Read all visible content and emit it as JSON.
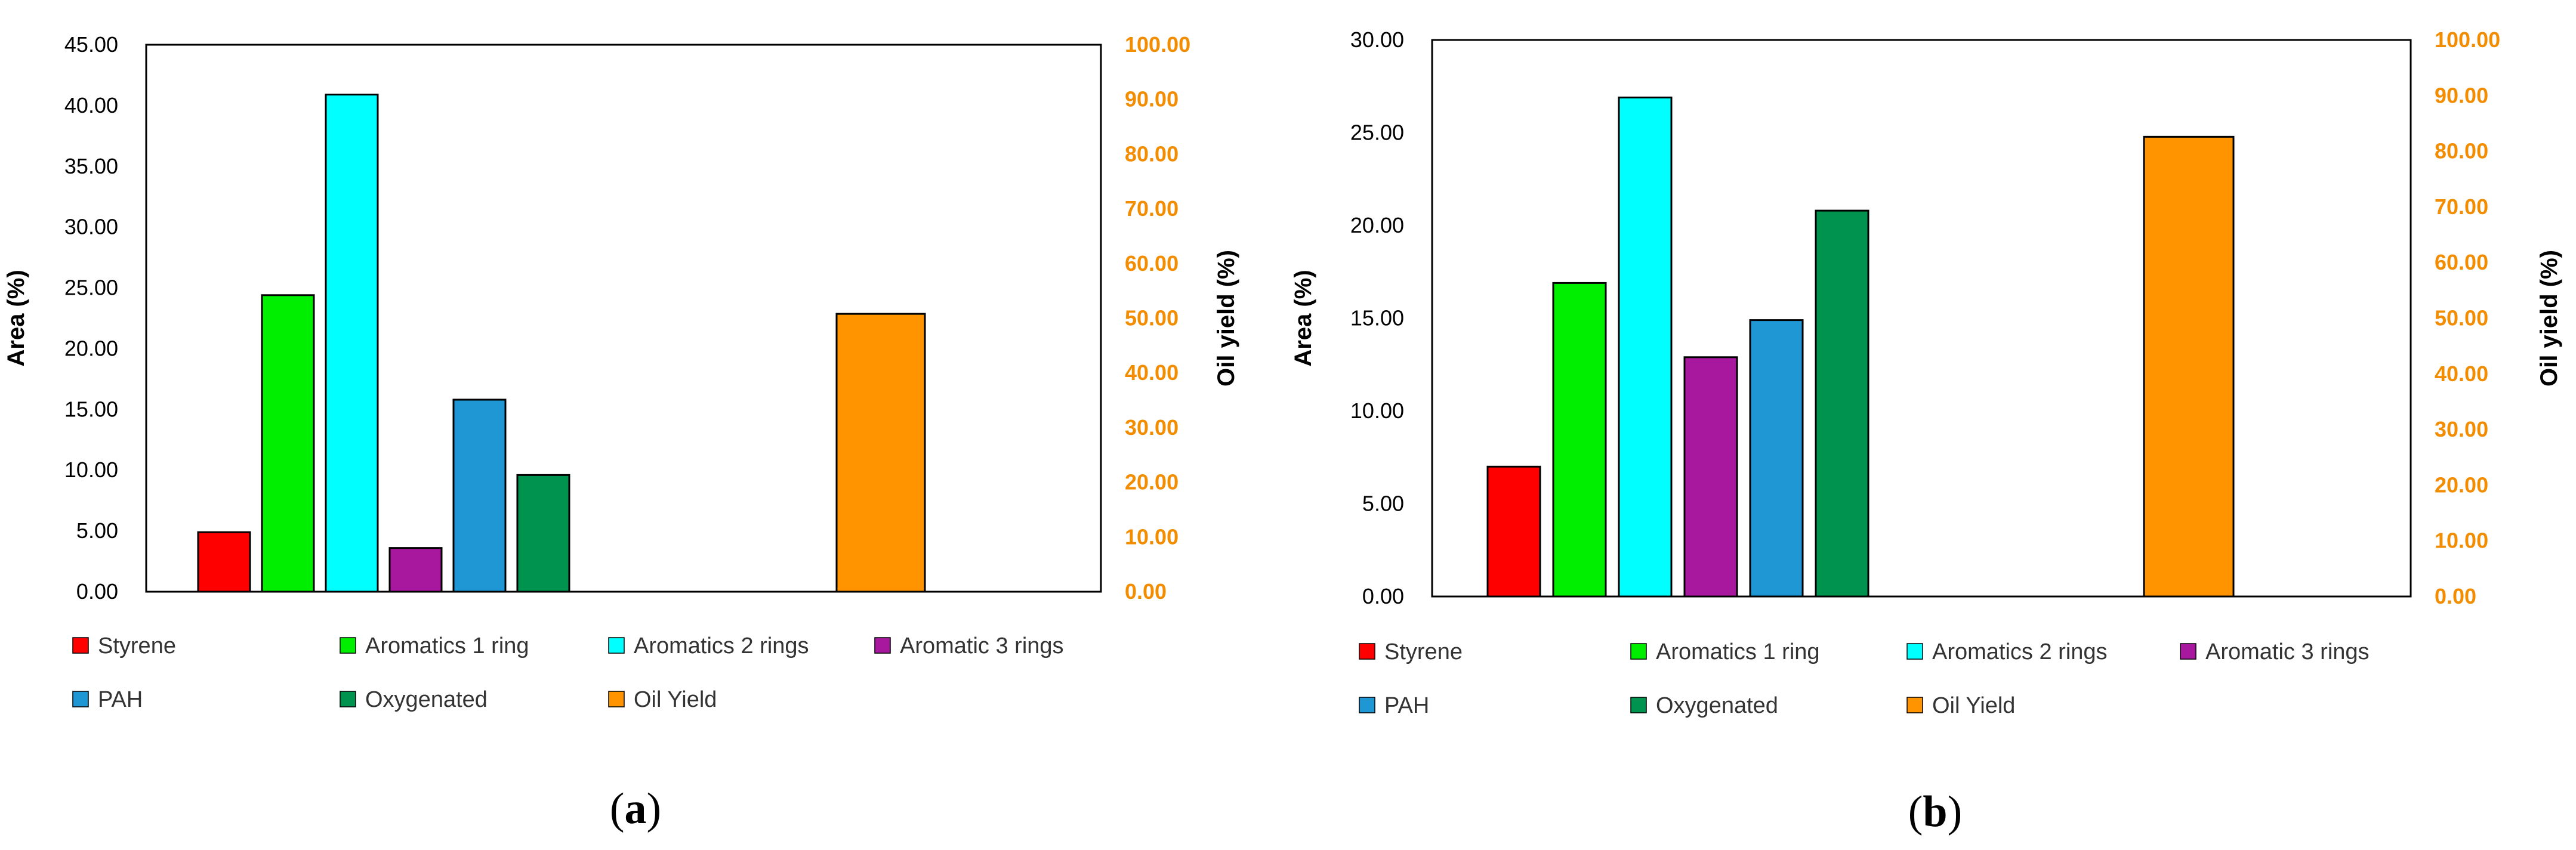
{
  "chart_data": [
    {
      "type": "bar",
      "panel_label": "(a)",
      "categories": [
        "Styrene",
        "Aromatics 1 ring",
        "Aromatics 2 rings",
        "Aromatic 3 rings",
        "PAH",
        "Oxygenated",
        "Oil Yield"
      ],
      "series": [
        {
          "name": "Styrene",
          "value": 4.9,
          "axis": "left",
          "slot": 0,
          "color": "#ff0000"
        },
        {
          "name": "Aromatics 1 ring",
          "value": 24.4,
          "axis": "left",
          "slot": 1,
          "color": "#00ee00"
        },
        {
          "name": "Aromatics 2 rings",
          "value": 40.9,
          "axis": "left",
          "slot": 2,
          "color": "#00ffff"
        },
        {
          "name": "Aromatic 3 rings",
          "value": 3.6,
          "axis": "left",
          "slot": 3,
          "color": "#a8189e"
        },
        {
          "name": "PAH",
          "value": 15.8,
          "axis": "left",
          "slot": 4,
          "color": "#1f97d4"
        },
        {
          "name": "Oxygenated",
          "value": 9.6,
          "axis": "left",
          "slot": 5,
          "color": "#00934f"
        },
        {
          "name": "Oil Yield",
          "value": 50.8,
          "axis": "right",
          "slot": 10,
          "color": "#ff9400"
        }
      ],
      "ylabel": "Area (%)",
      "y2label": "Oil yield (%)",
      "ylim": [
        0,
        45
      ],
      "yticks": [
        "0.00",
        "5.00",
        "10.00",
        "15.00",
        "20.00",
        "25.00",
        "30.00",
        "35.00",
        "40.00",
        "45.00"
      ],
      "y2lim": [
        0,
        100
      ],
      "y2ticks": [
        "0.00",
        "10.00",
        "20.00",
        "30.00",
        "40.00",
        "50.00",
        "60.00",
        "70.00",
        "80.00",
        "90.00",
        "100.00"
      ],
      "grid": false,
      "legend_position": "bottom"
    },
    {
      "type": "bar",
      "panel_label": "(b)",
      "categories": [
        "Styrene",
        "Aromatics 1 ring",
        "Aromatics 2 rings",
        "Aromatic 3 rings",
        "PAH",
        "Oxygenated",
        "Oil Yield"
      ],
      "series": [
        {
          "name": "Styrene",
          "value": 7.0,
          "axis": "left",
          "slot": 0,
          "color": "#ff0000"
        },
        {
          "name": "Aromatics 1 ring",
          "value": 16.9,
          "axis": "left",
          "slot": 1,
          "color": "#00ee00"
        },
        {
          "name": "Aromatics 2 rings",
          "value": 26.9,
          "axis": "left",
          "slot": 2,
          "color": "#00ffff"
        },
        {
          "name": "Aromatic 3 rings",
          "value": 12.9,
          "axis": "left",
          "slot": 3,
          "color": "#a8189e"
        },
        {
          "name": "PAH",
          "value": 14.9,
          "axis": "left",
          "slot": 4,
          "color": "#1f97d4"
        },
        {
          "name": "Oxygenated",
          "value": 20.8,
          "axis": "left",
          "slot": 5,
          "color": "#00934f"
        },
        {
          "name": "Oil Yield",
          "value": 82.6,
          "axis": "right",
          "slot": 10,
          "color": "#ff9400"
        }
      ],
      "ylabel": "Area (%)",
      "y2label": "Oil yield (%)",
      "ylim": [
        0,
        30
      ],
      "yticks": [
        "0.00",
        "5.00",
        "10.00",
        "15.00",
        "20.00",
        "25.00",
        "30.00"
      ],
      "y2lim": [
        0,
        100
      ],
      "y2ticks": [
        "0.00",
        "10.00",
        "20.00",
        "30.00",
        "40.00",
        "50.00",
        "60.00",
        "70.00",
        "80.00",
        "90.00",
        "100.00"
      ],
      "grid": false,
      "legend_position": "bottom"
    }
  ],
  "colors": {
    "right_axis": "#f28c00",
    "left_axis": "#000000"
  }
}
